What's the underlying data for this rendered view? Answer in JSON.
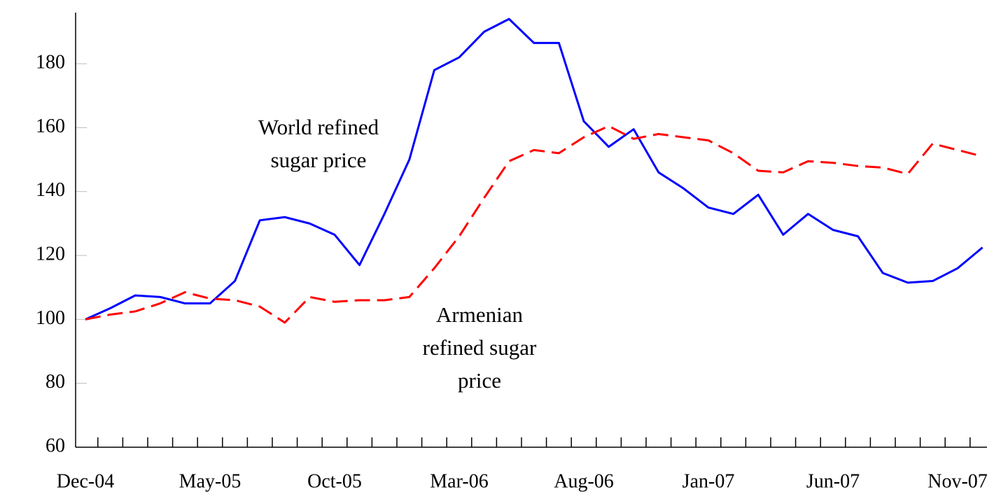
{
  "chart_data": {
    "type": "line",
    "categories": [
      "Dec-04",
      null,
      null,
      null,
      null,
      "May-05",
      null,
      null,
      null,
      null,
      "Oct-05",
      null,
      null,
      null,
      null,
      "Mar-06",
      null,
      null,
      null,
      null,
      "Aug-06",
      null,
      null,
      null,
      null,
      "Jan-07",
      null,
      null,
      null,
      null,
      "Jun-07",
      null,
      null,
      null,
      null,
      "Nov-07",
      null
    ],
    "series": [
      {
        "name": "World refined sugar price",
        "color": "#0000ff",
        "dash": false,
        "values": [
          100,
          103.5,
          107.5,
          107,
          105,
          105,
          112,
          131,
          132,
          130,
          126.5,
          117,
          133,
          150,
          178,
          182,
          190,
          194,
          186.5,
          186.5,
          162,
          154,
          159.5,
          146,
          141,
          135,
          133,
          139,
          126.5,
          133,
          128,
          126,
          114.5,
          111.5,
          112,
          116,
          122.5
        ]
      },
      {
        "name": "Armenian refined sugar price",
        "color": "#ff0000",
        "dash": true,
        "values": [
          100,
          101.5,
          102.5,
          105,
          108.5,
          106.5,
          106,
          104,
          99,
          107,
          105.5,
          106,
          106,
          107,
          116,
          126,
          138,
          149.5,
          153,
          152,
          157,
          160.5,
          156.5,
          158,
          157,
          156,
          152,
          146.5,
          146,
          149.5,
          149,
          148,
          147.5,
          145.5,
          155,
          153,
          151
        ]
      }
    ],
    "annotations": [
      {
        "lines": [
          "World refined",
          "sugar price"
        ]
      },
      {
        "lines": [
          "Armenian",
          "refined sugar",
          "price"
        ]
      }
    ],
    "ylim": [
      60,
      196
    ],
    "yticks": [
      60,
      80,
      100,
      120,
      140,
      160,
      180
    ],
    "grid": true
  }
}
